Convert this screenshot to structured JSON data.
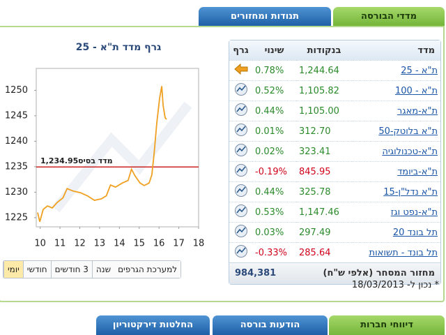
{
  "tabs_top": [
    "מדדי הבורסה",
    "תנודות ומחזורים"
  ],
  "chart": {
    "type": "line",
    "title": "גרף מדד ת\"א - 25",
    "x": [
      9.87,
      9.98,
      10.15,
      10.37,
      10.61,
      10.86,
      11.15,
      11.36,
      11.68,
      12.03,
      12.38,
      12.74,
      13.09,
      13.34,
      13.55,
      13.8,
      14.15,
      14.44,
      14.61,
      14.79,
      15.04,
      15.25,
      15.5,
      15.64,
      15.75,
      15.89,
      16.03,
      16.14,
      16.21,
      16.31,
      16.38
    ],
    "values": [
      1226.0,
      1224.2,
      1226.6,
      1227.3,
      1226.9,
      1228.0,
      1228.9,
      1230.7,
      1230.2,
      1229.9,
      1229.3,
      1228.4,
      1228.7,
      1229.3,
      1231.4,
      1231.0,
      1231.8,
      1232.3,
      1234.5,
      1233.2,
      1231.8,
      1231.3,
      1231.8,
      1233.4,
      1237.5,
      1243.6,
      1248.4,
      1250.8,
      1247.0,
      1244.6,
      1244.3
    ],
    "color": "#f0a020",
    "xlim": [
      9.8,
      18
    ],
    "xticks": [
      10,
      11,
      12,
      13,
      14,
      15,
      16,
      17,
      18
    ],
    "ylim": [
      1223.2,
      1254.3
    ],
    "yticks": [
      1225,
      1230,
      1235,
      1240,
      1245,
      1250
    ],
    "baseline": 1234.95,
    "baseline_value_label": "1,234.95",
    "baseline_label": "מדד בסיס",
    "baseline_color": "#cc2222"
  },
  "chart_buttons": [
    "יומי",
    "חודשי",
    "3 חודשים",
    "שנה",
    "למערכת הגרפים"
  ],
  "table": {
    "headers": [
      "מדד",
      "בנקודות",
      "שינוי",
      "גרף"
    ],
    "rows": [
      {
        "name": "ת\"א - 25",
        "points": "1,244.64",
        "change": "0.78%"
      },
      {
        "name": "ת\"א - 100",
        "points": "1,105.82",
        "change": "0.52%"
      },
      {
        "name": "ת\"א-מאגר",
        "points": "1,105.00",
        "change": "0.44%"
      },
      {
        "name": "ת\"א בלוטק-50",
        "points": "312.70",
        "change": "0.01%"
      },
      {
        "name": "ת\"א-טכנולוגיה",
        "points": "323.41",
        "change": "0.02%"
      },
      {
        "name": "ת\"א-ביומד",
        "points": "845.95",
        "change": "-0.19%"
      },
      {
        "name": "ת\"א נדל\"ן-15",
        "points": "325.78",
        "change": "0.44%"
      },
      {
        "name": "ת\"א-נפט וגז",
        "points": "1,147.46",
        "change": "0.53%"
      },
      {
        "name": "תל בונד 20",
        "points": "297.49",
        "change": "0.03%"
      },
      {
        "name": "תל בונד - תשואות",
        "points": "285.64",
        "change": "-0.33%"
      }
    ],
    "turnover_label": "מחזור המסחר (אלפי ש\"ח)",
    "turnover": "984,381"
  },
  "updated": "* נכון ל- 18/03/2013",
  "tabs_bottom": [
    "דיווחי חברות",
    "הודעות בורסה",
    "החלטות דירקטוריון"
  ]
}
